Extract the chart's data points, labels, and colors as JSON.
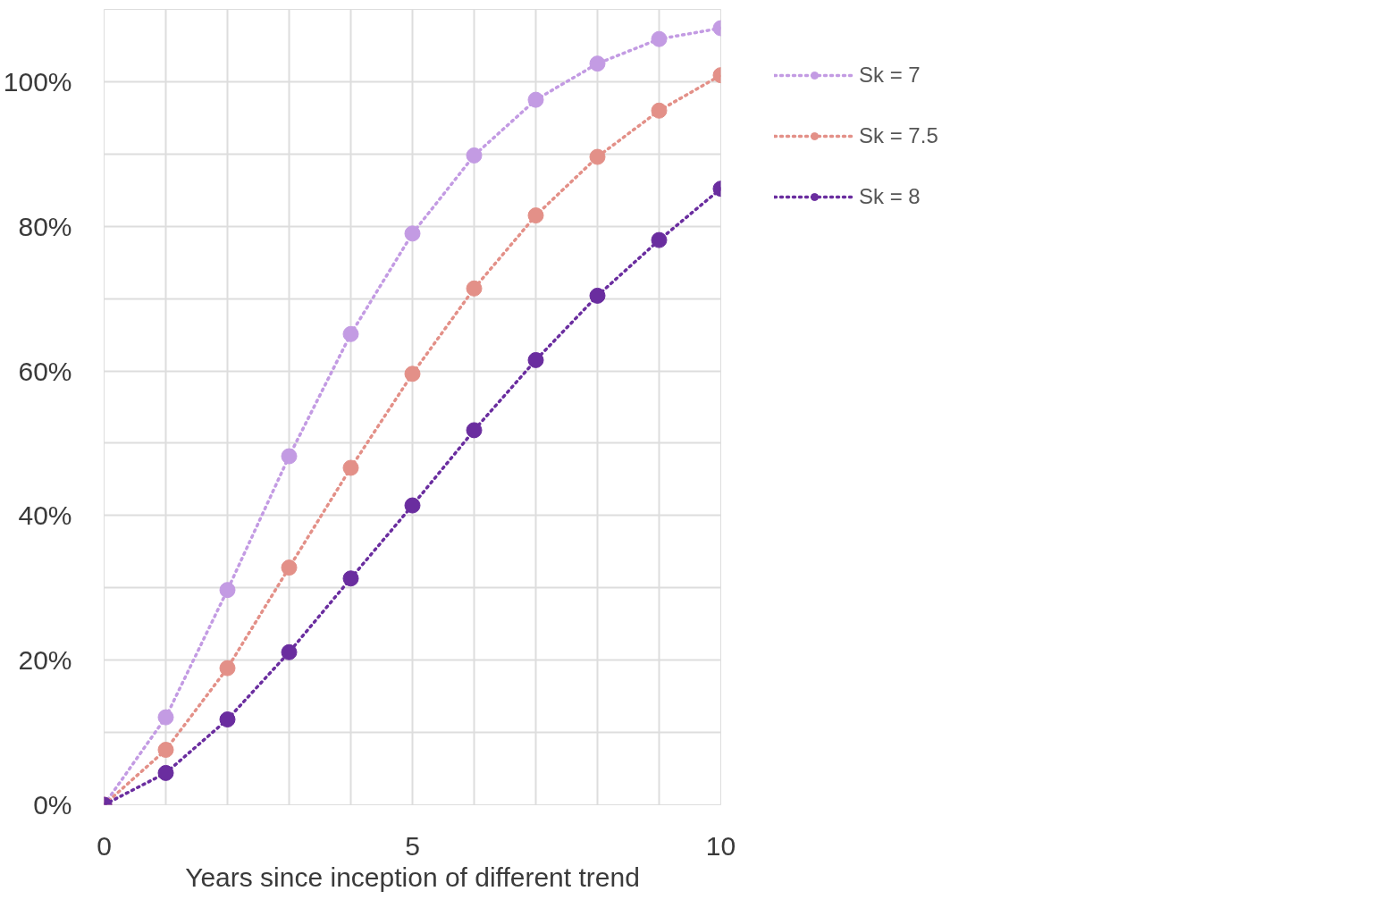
{
  "chart_data": {
    "type": "line",
    "xlabel": "Years since inception of different trend",
    "x": [
      0,
      1,
      2,
      3,
      4,
      5,
      6,
      7,
      8,
      9,
      10
    ],
    "series": [
      {
        "name": "Sk = 7",
        "color": "#c39be3",
        "values": [
          0,
          12.1,
          29.7,
          48.2,
          65.1,
          79.0,
          89.8,
          97.5,
          102.5,
          105.9,
          107.4
        ]
      },
      {
        "name": "Sk = 7.5",
        "color": "#e39088",
        "values": [
          0,
          7.6,
          18.9,
          32.8,
          46.6,
          59.6,
          71.4,
          81.5,
          89.6,
          96.0,
          100.9
        ]
      },
      {
        "name": "Sk = 8",
        "color": "#6a2d9f",
        "values": [
          0,
          4.4,
          11.8,
          21.1,
          31.3,
          41.4,
          51.8,
          61.5,
          70.4,
          78.1,
          85.2
        ]
      }
    ],
    "xlim": [
      0,
      10
    ],
    "xticks": [
      0,
      {
        "value": 1,
        "label": null
      },
      {
        "value": 2,
        "label": null
      },
      {
        "value": 3,
        "label": null
      },
      {
        "value": 4,
        "label": null
      },
      5,
      {
        "value": 6,
        "label": null
      },
      {
        "value": 7,
        "label": null
      },
      {
        "value": 8,
        "label": null
      },
      {
        "value": 9,
        "label": null
      },
      10
    ],
    "ylim": [
      0,
      110
    ],
    "yticks": [
      {
        "value": 0,
        "label": "0%"
      },
      {
        "value": 10,
        "label": null
      },
      {
        "value": 20,
        "label": "20%"
      },
      {
        "value": 30,
        "label": null
      },
      {
        "value": 40,
        "label": "40%"
      },
      {
        "value": 50,
        "label": null
      },
      {
        "value": 60,
        "label": "60%"
      },
      {
        "value": 70,
        "label": null
      },
      {
        "value": 80,
        "label": "80%"
      },
      {
        "value": 90,
        "label": null
      },
      {
        "value": 100,
        "label": "100%"
      }
    ],
    "grid": true,
    "legend": "right",
    "marker": "circle",
    "line_style": "dotted"
  }
}
